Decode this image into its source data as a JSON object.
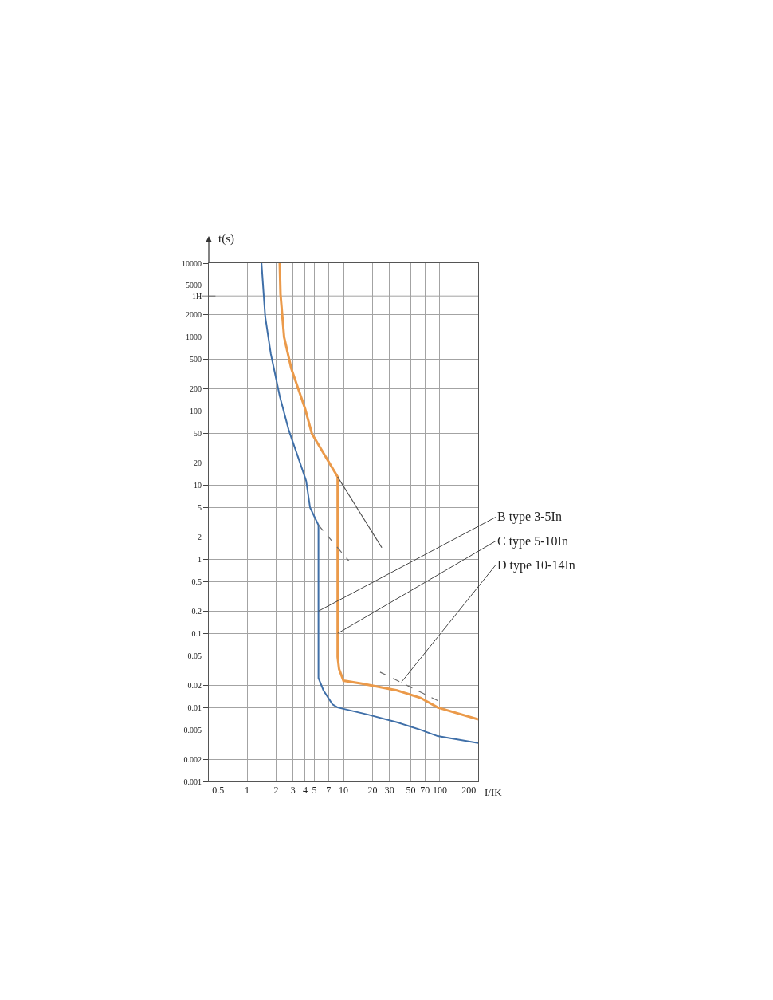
{
  "chart_data": {
    "type": "line",
    "xlabel": "I/IK",
    "ylabel": "t(s)",
    "xlim": [
      0.4,
      250
    ],
    "ylim": [
      0.001,
      10000
    ],
    "xticks": [
      0.5,
      1,
      2,
      3,
      4,
      5,
      7,
      10,
      20,
      30,
      50,
      70,
      100,
      200
    ],
    "yticks": [
      10000,
      5000,
      2000,
      1000,
      500,
      200,
      100,
      50,
      20,
      10,
      5,
      2,
      1,
      0.5,
      0.2,
      0.1,
      0.05,
      0.02,
      0.01,
      0.005,
      0.002,
      0.001
    ],
    "ref_lines": [
      {
        "axis": "y",
        "value": 3600,
        "label": "1H"
      }
    ],
    "log": "xy",
    "grid": true,
    "line_style": "solid",
    "series": [
      {
        "color": "#3f6fa8",
        "x": [
          1.41,
          1.54,
          1.76,
          2.18,
          2.7,
          3.5,
          4.1,
          4.5,
          5.5,
          5.5,
          6.2,
          7.7,
          8.7,
          18,
          36,
          63,
          95,
          250
        ],
        "values": [
          10000,
          1900,
          600,
          160,
          56,
          21,
          11.5,
          5,
          2.9,
          0.025,
          0.017,
          0.011,
          0.01,
          0.008,
          0.0063,
          0.005,
          0.0041,
          0.0033
        ]
      },
      {
        "color": "#eb9a4a",
        "x": [
          2.18,
          2.22,
          2.42,
          2.87,
          4,
          4.7,
          6.7,
          8.7,
          8.7,
          9,
          10,
          15.5,
          36,
          63,
          95,
          250
        ],
        "values": [
          10000,
          3800,
          1000,
          380,
          108,
          50,
          23,
          13,
          0.048,
          0.033,
          0.023,
          0.021,
          0.017,
          0.0135,
          0.01,
          0.0069
        ]
      },
      {
        "color": "#4d4d4d",
        "x": [
          8.7,
          25
        ],
        "values": [
          13,
          1.44
        ]
      },
      {
        "color": "#6b6b6b",
        "line_style": "dashed",
        "x": [
          5.5,
          11.4
        ],
        "values": [
          2.9,
          0.95
        ]
      },
      {
        "color": "#6b6b6b",
        "line_style": "dashed",
        "x": [
          24,
          95
        ],
        "values": [
          0.03,
          0.0124
        ]
      }
    ],
    "annotations": [
      {
        "text": "B type 3-5In",
        "x": 5.5,
        "y": 0.2
      },
      {
        "text": "C type 5-10In",
        "x": 8.7,
        "y": 0.1
      },
      {
        "text": "D type 10-14In",
        "x": 40,
        "y": 0.022
      }
    ]
  }
}
